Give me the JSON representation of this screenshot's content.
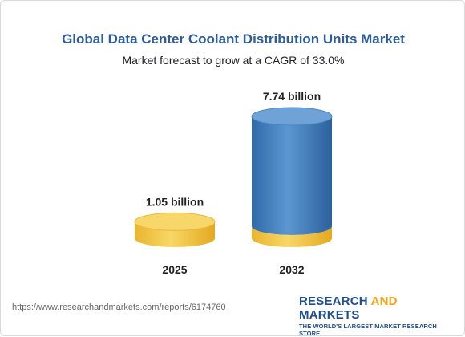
{
  "header": {
    "title": "Global Data Center Coolant Distribution Units Market",
    "subtitle": "Market forecast to grow at a CAGR of 33.0%"
  },
  "footer": {
    "url": "https://www.researchandmarkets.com/reports/6174760",
    "brand_part1": "RESEARCH ",
    "brand_part2": "AND",
    "brand_part3": " MARKETS",
    "brand_tagline": "THE WORLD'S LARGEST MARKET RESEARCH STORE"
  },
  "chart_data": {
    "type": "bar",
    "title": "Global Data Center Coolant Distribution Units Market",
    "subtitle": "Market forecast to grow at a CAGR of 33.0%",
    "categories": [
      "2025",
      "2032"
    ],
    "values": [
      1.05,
      7.74
    ],
    "value_labels": [
      "1.05 billion",
      "7.74 billion"
    ],
    "unit": "billion",
    "colors": {
      "2025": "#f5c842",
      "2032": "#3f7fc0",
      "base": "#f5c842"
    }
  }
}
